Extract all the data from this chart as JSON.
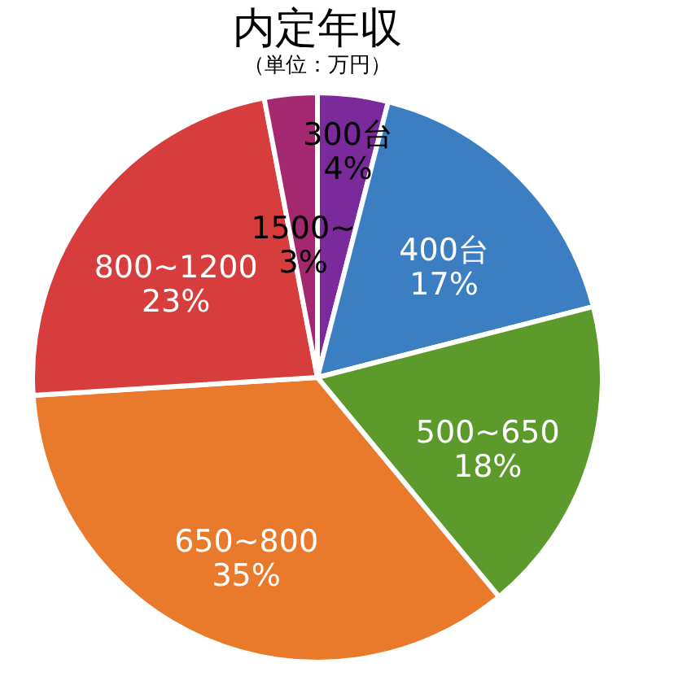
{
  "chart_data": {
    "type": "pie",
    "title": "内定年収",
    "subtitle": "（単位：万円）",
    "categories": [
      "300台",
      "400台",
      "500~650",
      "650~800",
      "800~1200",
      "1500~"
    ],
    "values": [
      4,
      17,
      18,
      35,
      23,
      3
    ],
    "value_labels": [
      "4%",
      "17%",
      "18%",
      "35%",
      "23%",
      "3%"
    ],
    "colors": [
      "#7a2a9a",
      "#3b7fc2",
      "#5b9a2b",
      "#ea7a2b",
      "#d83d3d",
      "#a3286f"
    ],
    "legend": false
  }
}
